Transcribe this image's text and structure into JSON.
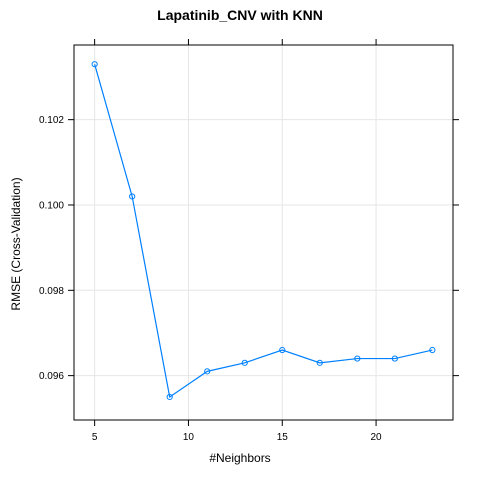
{
  "chart_data": {
    "type": "line",
    "title": "Lapatinib_CNV with KNN",
    "xlabel": "#Neighbors",
    "ylabel": "RMSE (Cross-Validation)",
    "x": [
      5,
      7,
      9,
      11,
      13,
      15,
      17,
      19,
      21,
      23
    ],
    "series": [
      {
        "values": [
          0.1033,
          0.1002,
          0.0955,
          0.0961,
          0.0963,
          0.0966,
          0.0963,
          0.0964,
          0.0964,
          0.0966
        ]
      }
    ],
    "xlim": [
      3.9,
      24.1
    ],
    "ylim": [
      0.09496,
      0.10375
    ],
    "xticks": [
      5,
      10,
      15,
      20
    ],
    "yticks": [
      0.096,
      0.098,
      0.1,
      0.102
    ],
    "xtick_labels": [
      "5",
      "10",
      "15",
      "20"
    ],
    "ytick_labels": [
      "0.096",
      "0.098",
      "0.100",
      "0.102"
    ],
    "grid": true,
    "legend": "none",
    "colors": {
      "series": "#0080ff",
      "grid": "#e6e6e6",
      "frame": "#000000"
    },
    "marker": "open-circle"
  }
}
